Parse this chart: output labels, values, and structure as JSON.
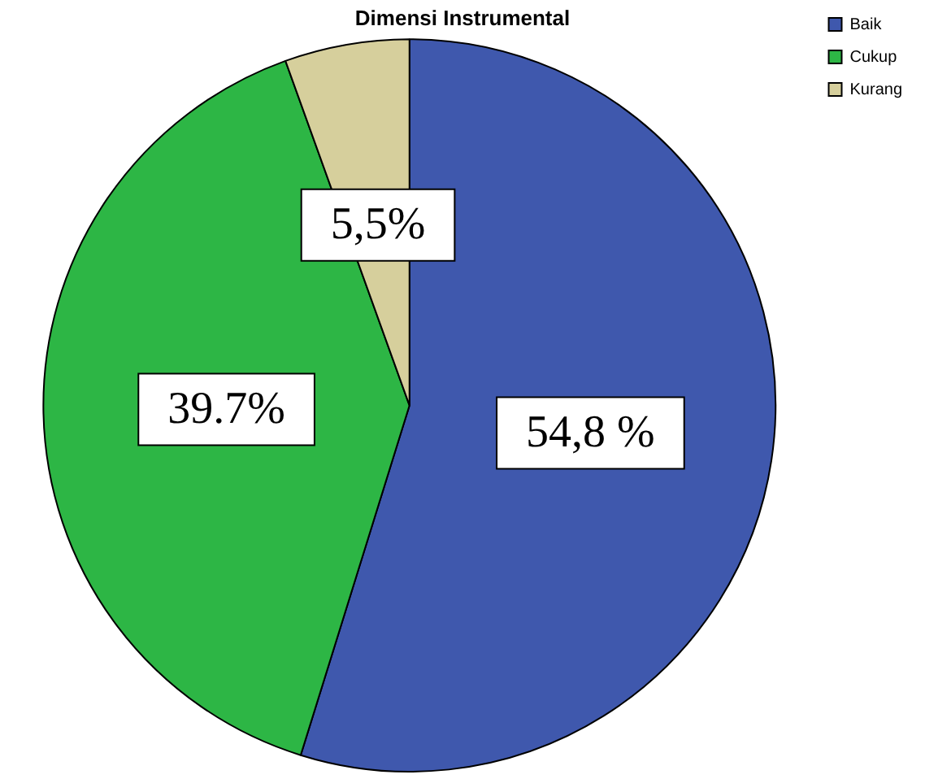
{
  "chart_data": {
    "type": "pie",
    "title": "Dimensi Instrumental",
    "categories": [
      "Baik",
      "Cukup",
      "Kurang"
    ],
    "values": [
      54.8,
      39.7,
      5.5
    ],
    "value_labels": [
      "54,8 %",
      "39.7%",
      "5,5%"
    ],
    "colors": [
      "#3f58ad",
      "#2db645",
      "#d6cf9c"
    ],
    "legend": "top right"
  }
}
